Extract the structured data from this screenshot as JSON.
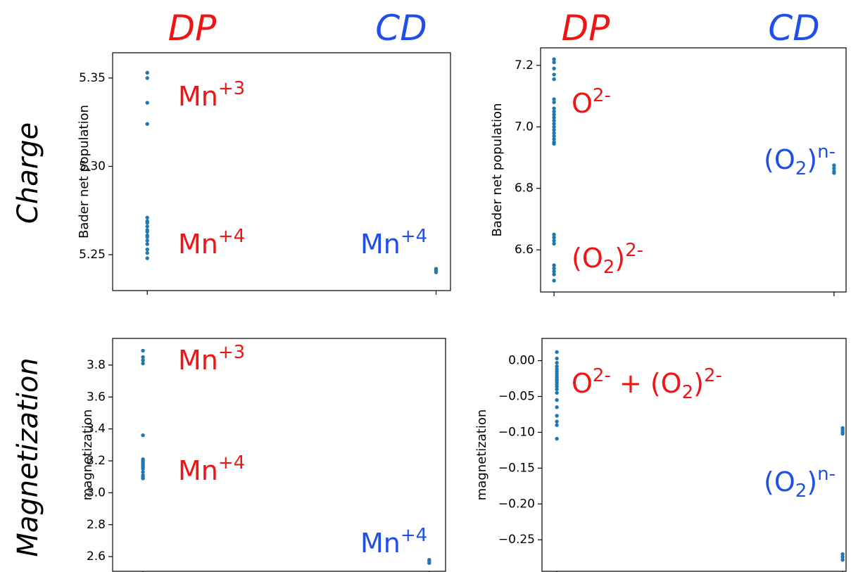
{
  "column_labels": [
    "DP",
    "CD",
    "DP",
    "CD"
  ],
  "row_labels": [
    "Charge",
    "Magnetization"
  ],
  "chart_data": [
    {
      "type": "scatter",
      "ylabel": "Bader net population",
      "color": "#1f77b4",
      "x": [
        0,
        0,
        0,
        0,
        0,
        0,
        0,
        0,
        0,
        0,
        0,
        0,
        0,
        0,
        0,
        0,
        0,
        1,
        1,
        1
      ],
      "values": [
        5.353,
        5.35,
        5.336,
        5.324,
        5.271,
        5.269,
        5.268,
        5.266,
        5.264,
        5.263,
        5.261,
        5.26,
        5.258,
        5.256,
        5.253,
        5.251,
        5.248,
        5.242,
        5.241,
        5.24
      ],
      "xlim": [
        -0.12,
        1.05
      ],
      "xticks": [
        0,
        1
      ],
      "ylim": [
        5.2297,
        5.3643
      ],
      "yticks": [
        5.25,
        {
          "value": 5.3,
          "label": "5.30"
        },
        5.35
      ],
      "annotations": [
        {
          "color": "#f01414",
          "parts": [
            {
              "text": "Mn"
            },
            {
              "sup": "+3"
            }
          ]
        },
        {
          "color": "#f01414",
          "parts": [
            {
              "text": "Mn"
            },
            {
              "sup": "+4"
            }
          ]
        },
        {
          "color": "#1f4fe8",
          "parts": [
            {
              "text": "Mn"
            },
            {
              "sup": "+4"
            }
          ]
        }
      ]
    },
    {
      "type": "scatter",
      "ylabel": "Bader net population",
      "color": "#1f77b4",
      "x": [
        0,
        0,
        0,
        0,
        0,
        0,
        0,
        0,
        0,
        0,
        0,
        0,
        0,
        0,
        0,
        0,
        0,
        0,
        0,
        0,
        0,
        0,
        0,
        0,
        0,
        0,
        0,
        0,
        0,
        1,
        1,
        1,
        1
      ],
      "values": [
        7.22,
        7.21,
        7.19,
        7.17,
        7.155,
        7.09,
        7.08,
        7.06,
        7.05,
        7.04,
        7.03,
        7.02,
        7.01,
        7.0,
        6.99,
        6.98,
        6.97,
        6.96,
        6.95,
        6.945,
        6.65,
        6.64,
        6.63,
        6.62,
        6.55,
        6.54,
        6.53,
        6.52,
        6.5,
        6.875,
        6.865,
        6.855,
        6.85
      ],
      "xlim": [
        -0.048,
        1.043
      ],
      "xticks": [
        0,
        1
      ],
      "ylim": [
        6.463,
        7.257
      ],
      "yticks": [
        6.6,
        6.8,
        {
          "value": 7,
          "label": "7.0"
        },
        7.2
      ],
      "annotations": [
        {
          "color": "#f01414",
          "parts": [
            {
              "text": "O"
            },
            {
              "sup": "2-"
            }
          ]
        },
        {
          "color": "#f01414",
          "parts": [
            {
              "text": "(O"
            },
            {
              "sub": "2"
            },
            {
              "text": ")"
            },
            {
              "sup": "2-"
            }
          ]
        },
        {
          "color": "#1f4fe8",
          "parts": [
            {
              "text": "(O"
            },
            {
              "sub": "2"
            },
            {
              "text": ")"
            },
            {
              "sup": "n-"
            }
          ]
        }
      ]
    },
    {
      "type": "scatter",
      "ylabel": "magnetization",
      "color": "#1f77b4",
      "x": [
        0,
        0,
        0,
        0,
        0,
        0,
        0,
        0,
        0,
        0,
        0,
        0,
        0,
        0,
        0,
        0,
        1,
        1,
        1
      ],
      "values": [
        3.89,
        3.85,
        3.83,
        3.81,
        3.36,
        3.21,
        3.2,
        3.19,
        3.18,
        3.17,
        3.16,
        3.15,
        3.13,
        3.11,
        3.1,
        3.09,
        2.58,
        2.57,
        2.56
      ],
      "xlim": [
        -0.106,
        1.057
      ],
      "xticks": [
        0,
        1
      ],
      "ylim": [
        2.508,
        3.967
      ],
      "yticks": [
        2.6,
        2.8,
        {
          "value": 3,
          "label": "3.0"
        },
        3.2,
        3.4,
        3.6,
        3.8
      ],
      "annotations": [
        {
          "color": "#f01414",
          "parts": [
            {
              "text": "Mn"
            },
            {
              "sup": "+3"
            }
          ]
        },
        {
          "color": "#f01414",
          "parts": [
            {
              "text": "Mn"
            },
            {
              "sup": "+4"
            }
          ]
        },
        {
          "color": "#1f4fe8",
          "parts": [
            {
              "text": "Mn"
            },
            {
              "sup": "+4"
            }
          ]
        }
      ]
    },
    {
      "type": "scatter",
      "ylabel": "magnetization",
      "color": "#1f77b4",
      "x": [
        0,
        0,
        0,
        0,
        0,
        0,
        0,
        0,
        0,
        0,
        0,
        0,
        0,
        0,
        0,
        0,
        0,
        0,
        0,
        0,
        0,
        1,
        1,
        1,
        1,
        1,
        1,
        1
      ],
      "values": [
        0.012,
        0.003,
        -0.003,
        -0.008,
        -0.012,
        -0.015,
        -0.018,
        -0.021,
        -0.024,
        -0.027,
        -0.03,
        -0.033,
        -0.036,
        -0.04,
        -0.045,
        -0.055,
        -0.065,
        -0.077,
        -0.085,
        -0.09,
        -0.109,
        -0.094,
        -0.097,
        -0.1,
        -0.102,
        -0.27,
        -0.274,
        -0.278
      ],
      "xlim": [
        -0.052,
        1.012
      ],
      "xticks": [
        0,
        1
      ],
      "ylim": [
        -0.294,
        0.031
      ],
      "yticks": [
        {
          "value": -0.25,
          "label": "−0.25"
        },
        {
          "value": -0.2,
          "label": "−0.20"
        },
        {
          "value": -0.15,
          "label": "−0.15"
        },
        {
          "value": -0.1,
          "label": "−0.10"
        },
        {
          "value": -0.05,
          "label": "−0.05"
        },
        {
          "value": 0,
          "label": "0.00"
        }
      ],
      "annotations": [
        {
          "color": "#f01414",
          "parts": [
            {
              "text": "O"
            },
            {
              "sup": "2-"
            },
            {
              "text": " + (O"
            },
            {
              "sub": "2"
            },
            {
              "text": ")"
            },
            {
              "sup": "2-"
            }
          ]
        },
        {
          "color": "#1f4fe8",
          "parts": [
            {
              "text": "(O"
            },
            {
              "sub": "2"
            },
            {
              "text": ")"
            },
            {
              "sup": "n-"
            }
          ]
        }
      ]
    }
  ]
}
